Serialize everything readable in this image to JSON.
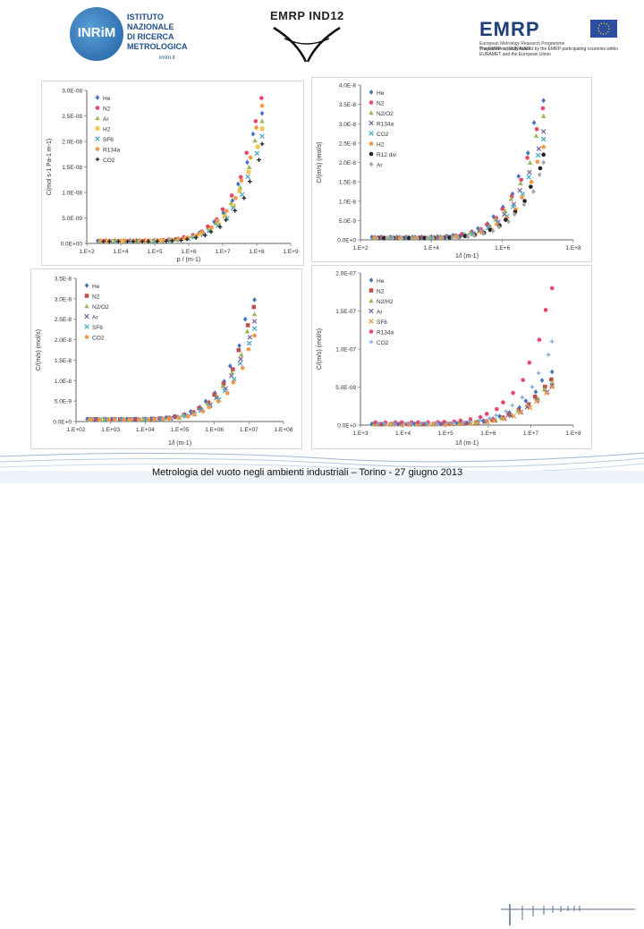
{
  "logos": {
    "inrim": {
      "mark": "INRiM",
      "lines": [
        "ISTITUTO",
        "NAZIONALE",
        "DI RICERCA",
        "METROLOGICA"
      ],
      "sub": "inrim.it"
    },
    "emrp_ind": {
      "title": "EMRP IND12"
    },
    "emrp": {
      "word": "EMRP",
      "program": [
        "European Metrology Research Programme",
        "Programme of EURAMET"
      ],
      "funding": "The EMRP is jointly funded by the EMRP participating countries within EURAMET and the European Union"
    }
  },
  "footer": {
    "text": "Metrologia del vuoto negli ambienti industriali – Torino - 27 giugno 2013"
  },
  "chart_data": [
    {
      "id": "tl",
      "type": "scatter",
      "xlabel": "p / (m-1)",
      "ylabel": "C(mol s-1 Pa-1 m-1)",
      "y_tick_labels": [
        "0.0E+00",
        "5.0E-09",
        "1.0E-08",
        "1.5E-08",
        "2.0E-08",
        "2.5E-08",
        "3.0E-08"
      ],
      "x_tick_labels": [
        "1.E+2",
        "1.E+4",
        "1.E+5",
        "1.E+6",
        "1.E+7",
        "1.E+8",
        "1.E+9"
      ],
      "x_log_range": [
        2,
        9
      ],
      "ylim": [
        0,
        3e-08
      ],
      "legend_position": "top-left",
      "series": [
        {
          "name": "He",
          "color": "#4472c4",
          "marker": "diamond",
          "scale": 0.85
        },
        {
          "name": "N2",
          "color": "#e8476a",
          "marker": "circle",
          "scale": 0.95
        },
        {
          "name": "Ar",
          "color": "#9bbb59",
          "marker": "triangle",
          "scale": 0.8
        },
        {
          "name": "H2",
          "color": "#f2c14e",
          "marker": "square",
          "scale": 0.75
        },
        {
          "name": "SF6",
          "color": "#4bacc6",
          "marker": "x",
          "scale": 0.7
        },
        {
          "name": "R134a",
          "color": "#f79646",
          "marker": "circle",
          "scale": 0.9
        },
        {
          "name": "CO2",
          "color": "#222222",
          "marker": "plus",
          "scale": 0.65
        }
      ]
    },
    {
      "id": "tr",
      "type": "scatter",
      "xlabel": "1/l (m-1)",
      "ylabel": "C/(m/s) (mol/s)",
      "y_tick_labels": [
        "0.0E+0",
        "5.0E-9",
        "1.0E-8",
        "1.5E-8",
        "2.0E-8",
        "2.5E-8",
        "3.0E-8",
        "3.5E-8",
        "4.0E-8"
      ],
      "x_tick_labels": [
        "1.E+2",
        "1.E+4",
        "1.E+6",
        "1.E+8"
      ],
      "x_log_range": [
        2,
        8
      ],
      "ylim": [
        0,
        4e-08
      ],
      "legend_position": "top-left",
      "series": [
        {
          "name": "He",
          "color": "#4472c4",
          "marker": "diamond",
          "scale": 0.9
        },
        {
          "name": "N2",
          "color": "#e8476a",
          "marker": "circle",
          "scale": 0.85
        },
        {
          "name": "N2/O2",
          "color": "#9bbb59",
          "marker": "triangle",
          "scale": 0.8
        },
        {
          "name": "R134a",
          "color": "#8064a2",
          "marker": "x",
          "scale": 0.7
        },
        {
          "name": "CO2",
          "color": "#4bacc6",
          "marker": "x",
          "scale": 0.65
        },
        {
          "name": "H2",
          "color": "#f79646",
          "marker": "circle",
          "scale": 0.6
        },
        {
          "name": "R12 div",
          "color": "#222222",
          "marker": "circle",
          "scale": 0.55
        },
        {
          "name": "Ar",
          "color": "#a5a5a5",
          "marker": "diamond",
          "scale": 0.5
        }
      ]
    },
    {
      "id": "bl",
      "type": "scatter",
      "xlabel": "1/l (m-1)",
      "ylabel": "C/(m/s) (mol/s)",
      "y_tick_labels": [
        "0.0E+0",
        "5.0E-9",
        "1.0E-8",
        "1.5E-8",
        "2.0E-8",
        "2.5E-8",
        "3.0E-8",
        "3.5E-8"
      ],
      "x_tick_labels": [
        "1.E+02",
        "1.E+03",
        "1.E+04",
        "1.E+05",
        "1.E+06",
        "1.E+07",
        "1.E+08"
      ],
      "x_log_range": [
        2,
        8
      ],
      "ylim": [
        0,
        3.5e-08
      ],
      "legend_position": "top-left",
      "series": [
        {
          "name": "He",
          "color": "#4472c4",
          "marker": "diamond",
          "scale": 0.85
        },
        {
          "name": "N2",
          "color": "#c0504d",
          "marker": "square",
          "scale": 0.8
        },
        {
          "name": "N2/O2",
          "color": "#9bbb59",
          "marker": "triangle",
          "scale": 0.75
        },
        {
          "name": "Ar",
          "color": "#8064a2",
          "marker": "x",
          "scale": 0.7
        },
        {
          "name": "SF6",
          "color": "#4bacc6",
          "marker": "x",
          "scale": 0.65
        },
        {
          "name": "CO2",
          "color": "#f79646",
          "marker": "circle",
          "scale": 0.6
        }
      ]
    },
    {
      "id": "br",
      "type": "scatter",
      "xlabel": "1/l (m-1)",
      "ylabel": "C/(m/s) (mol/s)",
      "y_tick_labels": [
        "0.0E+0",
        "5.0E-08",
        "1.0E-07",
        "1.5E-07",
        "2.0E-07"
      ],
      "x_tick_labels": [
        "1.E+3",
        "1.E+4",
        "1.E+5",
        "1.E+6",
        "1.E+7",
        "1.E+8"
      ],
      "x_log_range": [
        3,
        8
      ],
      "ylim": [
        0,
        2e-07
      ],
      "legend_position": "top-left",
      "series": [
        {
          "name": "He",
          "color": "#4472c4",
          "marker": "diamond",
          "scale": 0.35
        },
        {
          "name": "N2",
          "color": "#c0504d",
          "marker": "square",
          "scale": 0.3
        },
        {
          "name": "N2/H2",
          "color": "#9bbb59",
          "marker": "triangle",
          "scale": 0.28
        },
        {
          "name": "Ar",
          "color": "#8064a2",
          "marker": "x",
          "scale": 0.26
        },
        {
          "name": "SF6",
          "color": "#f79646",
          "marker": "x",
          "scale": 0.25
        },
        {
          "name": "R134a",
          "color": "#e8476a",
          "marker": "circle",
          "scale": 0.9
        },
        {
          "name": "CO2",
          "color": "#7fa7d8",
          "marker": "plus",
          "scale": 0.55
        }
      ]
    }
  ]
}
